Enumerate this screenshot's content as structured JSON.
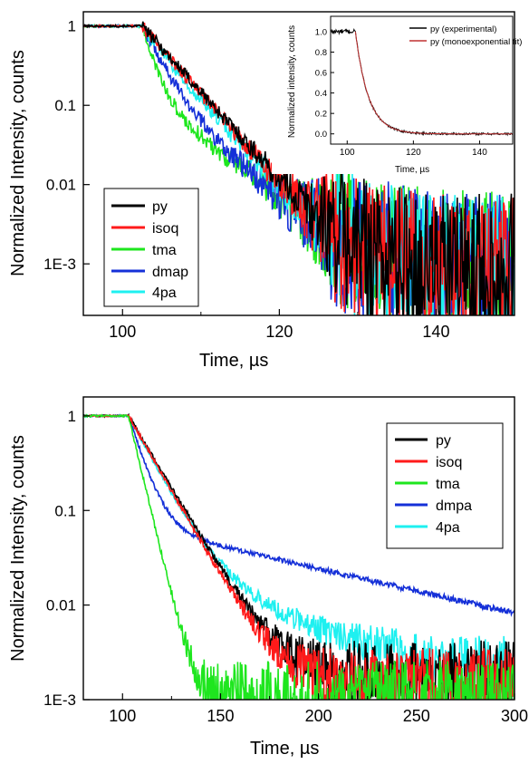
{
  "colors": {
    "py": "#000000",
    "isoq": "#ff1a1a",
    "tma": "#1ee61e",
    "dmap": "#1530d8",
    "4pa": "#1ef0f0",
    "fit": "#c03030"
  },
  "chart_data": [
    {
      "type": "line",
      "xlabel": "Time, µs",
      "ylabel": "Normalized Intensity, counts",
      "xlim": [
        95,
        150
      ],
      "ylim_log10": [
        -3.65,
        0.18
      ],
      "log_y": true,
      "grid": false,
      "legend_position": "lower-left",
      "xticks": [
        100,
        120,
        140
      ],
      "yticks": [
        {
          "value": 1,
          "label": "1"
        },
        {
          "value": 0.1,
          "label": "0.1"
        },
        {
          "value": 0.01,
          "label": "0.01"
        },
        {
          "value": 0.001,
          "label": "1E-3"
        }
      ],
      "pulse_end": 102.5,
      "noise_floor": 0.0015,
      "series": [
        {
          "name": "py",
          "key": "py",
          "components": [
            {
              "amplitude": 1.0,
              "tau": 3.9
            }
          ]
        },
        {
          "name": "isoq",
          "key": "isoq",
          "components": [
            {
              "amplitude": 1.0,
              "tau": 3.8
            }
          ]
        },
        {
          "name": "tma",
          "key": "tma",
          "components": [
            {
              "amplitude": 0.85,
              "tau": 1.2
            },
            {
              "amplitude": 0.15,
              "tau": 5.5
            }
          ]
        },
        {
          "name": "dmap",
          "key": "dmap",
          "components": [
            {
              "amplitude": 0.8,
              "tau": 2.0
            },
            {
              "amplitude": 0.2,
              "tau": 5.0
            }
          ]
        },
        {
          "name": "4pa",
          "key": "4pa",
          "components": [
            {
              "amplitude": 0.6,
              "tau": 2.8
            },
            {
              "amplitude": 0.4,
              "tau": 4.5
            }
          ]
        }
      ],
      "inset": {
        "type": "line",
        "xlabel": "Time, µs",
        "ylabel": "Normalized intensity, counts",
        "xlim": [
          95,
          150
        ],
        "ylim": [
          -0.1,
          1.15
        ],
        "xticks": [
          100,
          120,
          140
        ],
        "yticks": [
          0.0,
          0.2,
          0.4,
          0.6,
          0.8,
          1.0
        ],
        "ytick_labels": [
          "0.0",
          "0.2",
          "0.4",
          "0.6",
          "0.8",
          "1.0"
        ],
        "legend_position": "top-right",
        "pulse_end": 102.5,
        "tau": 3.9,
        "series": [
          {
            "name": "py (experimental)",
            "key": "py"
          },
          {
            "name": "py (monoexponential fit)",
            "key": "fit"
          }
        ]
      }
    },
    {
      "type": "line",
      "xlabel": "Time, µs",
      "ylabel": "Normalized Intensity, counts",
      "xlim": [
        80,
        300
      ],
      "ylim_log10": [
        -3.0,
        0.2
      ],
      "log_y": true,
      "grid": false,
      "legend_position": "top-right",
      "xticks": [
        100,
        150,
        200,
        250,
        300
      ],
      "yticks": [
        {
          "value": 1,
          "label": "1"
        },
        {
          "value": 0.1,
          "label": "0.1"
        },
        {
          "value": 0.01,
          "label": "0.01"
        },
        {
          "value": 0.001,
          "label": "1E-3"
        }
      ],
      "pulse_end": 103,
      "series": [
        {
          "name": "py",
          "key": "py",
          "floor": 0.0018,
          "components": [
            {
              "amplitude": 1.0,
              "tau": 12.5
            }
          ]
        },
        {
          "name": "isoq",
          "key": "isoq",
          "floor": 0.0015,
          "components": [
            {
              "amplitude": 1.0,
              "tau": 12.0
            }
          ]
        },
        {
          "name": "tma",
          "key": "tma",
          "floor": 0.0011,
          "components": [
            {
              "amplitude": 1.0,
              "tau": 5.0
            }
          ]
        },
        {
          "name": "dmpa",
          "key": "dmap",
          "floor": 0.0004,
          "components": [
            {
              "amplitude": 0.93,
              "tau": 6.5
            },
            {
              "amplitude": 0.07,
              "tau": 90
            }
          ]
        },
        {
          "name": "4pa",
          "key": "4pa",
          "floor": 0.002,
          "components": [
            {
              "amplitude": 0.96,
              "tau": 11
            },
            {
              "amplitude": 0.04,
              "tau": 40
            }
          ]
        }
      ]
    }
  ]
}
